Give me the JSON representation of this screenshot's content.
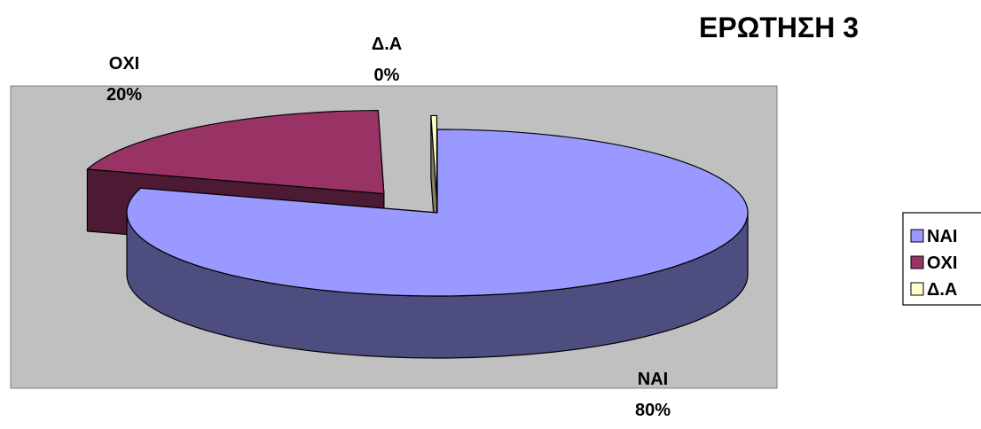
{
  "chart_data": {
    "type": "pie",
    "style": "3d-exploded",
    "title": "ΕΡΩΤΗΣΗ 3",
    "categories": [
      "ΝΑΙ",
      "ΟΧΙ",
      "Δ.Α"
    ],
    "values": [
      80,
      20,
      0.3
    ],
    "value_labels": [
      "80%",
      "20%",
      "0%"
    ],
    "colors": [
      "#9999FF",
      "#993366",
      "#FFFFCC"
    ],
    "legend": {
      "position": "right",
      "entries": [
        "ΝΑΙ",
        "ΟΧΙ",
        "Δ.Α"
      ]
    },
    "plot_area_background": "#C0C0C0"
  }
}
